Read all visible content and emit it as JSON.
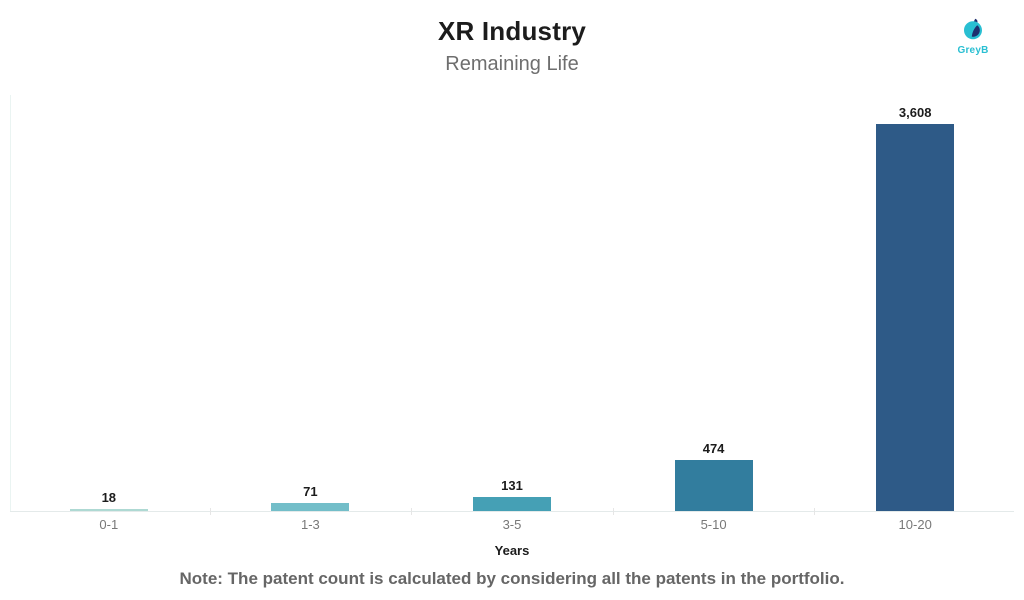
{
  "header": {
    "title": "XR Industry",
    "subtitle": "Remaining Life"
  },
  "logo": {
    "brand": "GreyB",
    "icon": "greyb-bird-icon",
    "cyan": "#29bfd2",
    "navy": "#1e2f6e"
  },
  "chart_data": {
    "type": "bar",
    "title": "XR Industry",
    "subtitle": "Remaining Life",
    "categories": [
      "0-1",
      "1-3",
      "3-5",
      "5-10",
      "10-20"
    ],
    "values": [
      18,
      71,
      131,
      474,
      3608
    ],
    "value_labels": [
      "18",
      "71",
      "131",
      "474",
      "3,608"
    ],
    "bar_colors": [
      "#aed9d3",
      "#73bec9",
      "#45a0b5",
      "#327d9e",
      "#2e5a87"
    ],
    "xlabel": "Years",
    "ylabel": "",
    "ylim": [
      0,
      3608
    ],
    "grid": false,
    "legend": false,
    "value_label_position": "above-bars",
    "axis_line_color": "#e4eaea"
  },
  "footer": {
    "note": "Note: The patent count is calculated by considering all the patents in the portfolio."
  }
}
